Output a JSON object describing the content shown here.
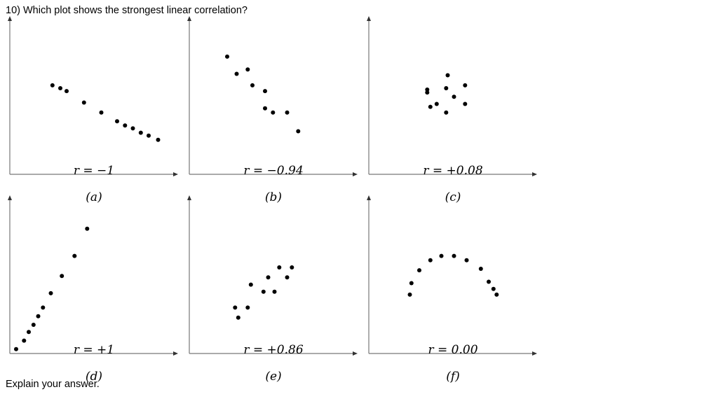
{
  "question": "10) Which plot shows the strongest linear correlation?",
  "footer": "Explain your answer.",
  "chart_data": [
    {
      "type": "scatter",
      "r_label": "r = −1",
      "panel_label": "(a)",
      "xlim": [
        0,
        10
      ],
      "ylim": [
        0,
        10
      ],
      "points": [
        [
          2.7,
          6.2
        ],
        [
          3.2,
          6.0
        ],
        [
          3.6,
          5.8
        ],
        [
          4.7,
          5.0
        ],
        [
          5.8,
          4.3
        ],
        [
          6.8,
          3.7
        ],
        [
          7.3,
          3.4
        ],
        [
          7.8,
          3.2
        ],
        [
          8.3,
          2.9
        ],
        [
          8.8,
          2.7
        ],
        [
          9.4,
          2.4
        ]
      ]
    },
    {
      "type": "scatter",
      "r_label": "r = −0.94",
      "panel_label": "(b)",
      "xlim": [
        0,
        10
      ],
      "ylim": [
        0,
        10
      ],
      "points": [
        [
          2.4,
          8.2
        ],
        [
          3.0,
          7.0
        ],
        [
          3.7,
          7.3
        ],
        [
          4.0,
          6.2
        ],
        [
          4.8,
          5.8
        ],
        [
          4.8,
          4.6
        ],
        [
          5.3,
          4.3
        ],
        [
          6.2,
          4.3
        ],
        [
          6.9,
          3.0
        ]
      ]
    },
    {
      "type": "scatter",
      "r_label": "r = +0.08",
      "panel_label": "(c)",
      "xlim": [
        0,
        10
      ],
      "ylim": [
        0,
        10
      ],
      "points": [
        [
          3.7,
          5.9
        ],
        [
          3.7,
          5.7
        ],
        [
          3.9,
          4.7
        ],
        [
          4.3,
          4.9
        ],
        [
          4.9,
          6.0
        ],
        [
          4.9,
          4.3
        ],
        [
          5.0,
          6.9
        ],
        [
          5.4,
          5.4
        ],
        [
          6.1,
          6.2
        ],
        [
          6.1,
          4.9
        ]
      ]
    },
    {
      "type": "scatter",
      "r_label": "r = +1",
      "panel_label": "(d)",
      "xlim": [
        0,
        10
      ],
      "ylim": [
        0,
        10
      ],
      "points": [
        [
          0.4,
          0.3
        ],
        [
          0.9,
          0.9
        ],
        [
          1.2,
          1.5
        ],
        [
          1.5,
          2.0
        ],
        [
          1.8,
          2.6
        ],
        [
          2.1,
          3.2
        ],
        [
          2.6,
          4.2
        ],
        [
          3.3,
          5.4
        ],
        [
          4.1,
          6.8
        ],
        [
          4.9,
          8.7
        ]
      ]
    },
    {
      "type": "scatter",
      "r_label": "r = +0.86",
      "panel_label": "(e)",
      "xlim": [
        0,
        10
      ],
      "ylim": [
        0,
        10
      ],
      "points": [
        [
          2.9,
          3.2
        ],
        [
          3.1,
          2.5
        ],
        [
          3.7,
          3.2
        ],
        [
          3.9,
          4.8
        ],
        [
          4.7,
          4.3
        ],
        [
          5.0,
          5.3
        ],
        [
          5.4,
          4.3
        ],
        [
          5.7,
          6.0
        ],
        [
          6.2,
          5.3
        ],
        [
          6.5,
          6.0
        ]
      ]
    },
    {
      "type": "scatter",
      "r_label": "r = 0.00",
      "panel_label": "(f)",
      "xlim": [
        0,
        10
      ],
      "ylim": [
        0,
        10
      ],
      "points": [
        [
          2.6,
          4.1
        ],
        [
          2.7,
          4.9
        ],
        [
          3.2,
          5.8
        ],
        [
          3.9,
          6.5
        ],
        [
          4.6,
          6.8
        ],
        [
          5.4,
          6.8
        ],
        [
          6.2,
          6.5
        ],
        [
          7.1,
          5.9
        ],
        [
          7.6,
          5.0
        ],
        [
          7.9,
          4.5
        ],
        [
          8.1,
          4.1
        ]
      ]
    }
  ]
}
